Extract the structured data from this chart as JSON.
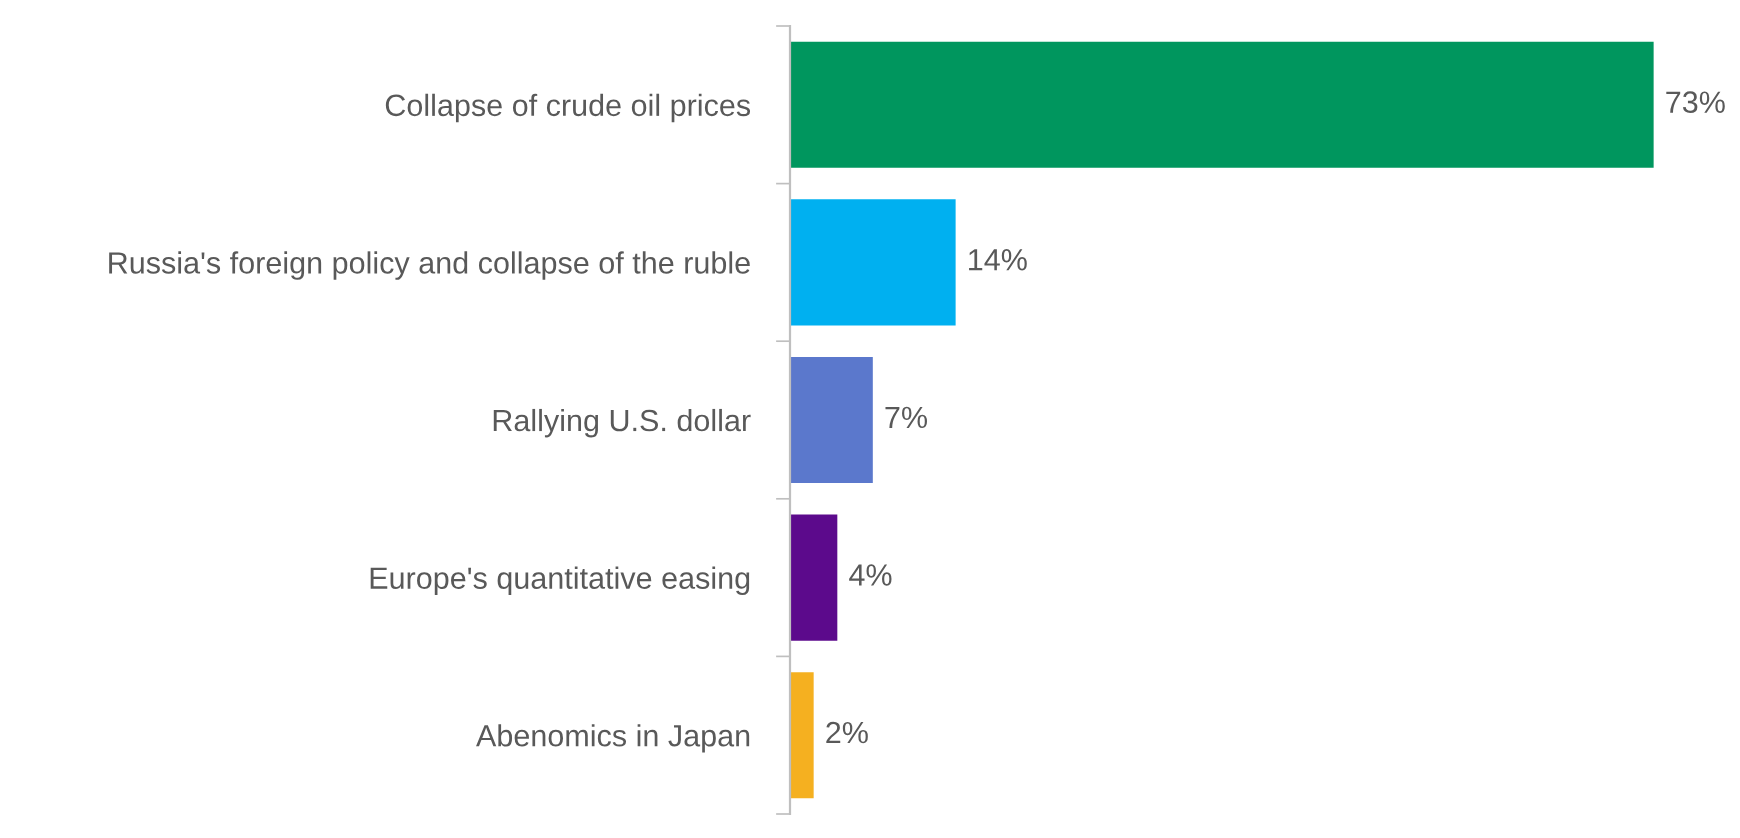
{
  "chart_data": {
    "type": "bar",
    "orientation": "horizontal",
    "categories": [
      "Collapse of crude oil prices",
      "Russia's foreign policy and collapse of the ruble",
      "Rallying U.S. dollar",
      "Europe's quantitative easing",
      "Abenomics in Japan"
    ],
    "values": [
      73,
      14,
      7,
      4,
      2
    ],
    "colors": [
      "#00965e",
      "#00b0f0",
      "#5b78cc",
      "#5c0a8c",
      "#f5b020"
    ],
    "value_labels": [
      "73%",
      "14%",
      "7%",
      "4%",
      "2%"
    ],
    "grid": false,
    "legend": false
  }
}
